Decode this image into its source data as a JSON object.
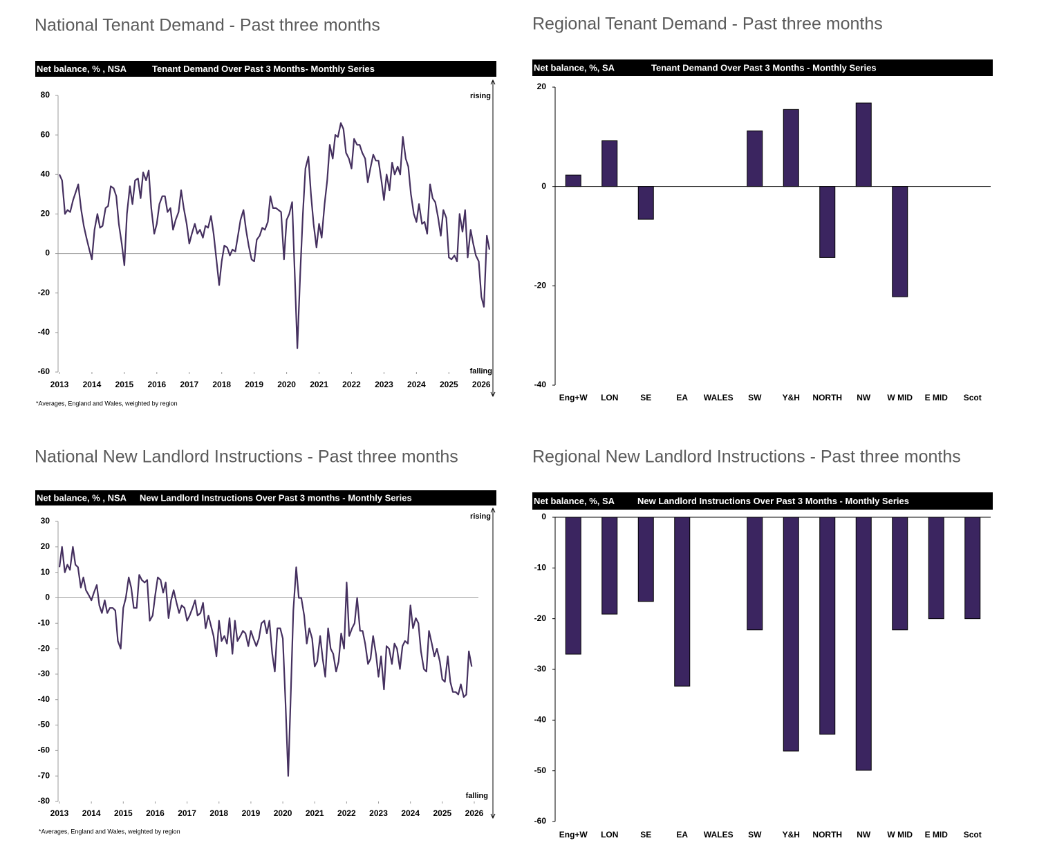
{
  "chart_data": [
    {
      "type": "line",
      "title": "National Tenant Demand - Past three months",
      "subtitle": "Tenant Demand Over Past 3 Months- Monthly Series",
      "ylabel": "Net balance, % , NSA",
      "annotations": [
        "rising",
        "falling"
      ],
      "footnote": "*Averages, England and Wales, weighted by region",
      "color": "#45305f",
      "x": [
        2013,
        2013.08,
        2013.17,
        2013.25,
        2013.33,
        2013.42,
        2013.5,
        2013.58,
        2013.67,
        2013.75,
        2013.83,
        2013.92,
        2014,
        2014.08,
        2014.17,
        2014.25,
        2014.33,
        2014.42,
        2014.5,
        2014.58,
        2014.67,
        2014.75,
        2014.83,
        2014.92,
        2015,
        2015.08,
        2015.17,
        2015.25,
        2015.33,
        2015.42,
        2015.5,
        2015.58,
        2015.67,
        2015.75,
        2015.83,
        2015.92,
        2016,
        2016.08,
        2016.17,
        2016.25,
        2016.33,
        2016.42,
        2016.5,
        2016.58,
        2016.67,
        2016.75,
        2016.83,
        2016.92,
        2017,
        2017.08,
        2017.17,
        2017.25,
        2017.33,
        2017.42,
        2017.5,
        2017.58,
        2017.67,
        2017.75,
        2017.83,
        2017.92,
        2018,
        2018.08,
        2018.17,
        2018.25,
        2018.33,
        2018.42,
        2018.5,
        2018.58,
        2018.67,
        2018.75,
        2018.83,
        2018.92,
        2019,
        2019.08,
        2019.17,
        2019.25,
        2019.33,
        2019.42,
        2019.5,
        2019.58,
        2019.67,
        2019.75,
        2019.83,
        2019.92,
        2020,
        2020.08,
        2020.17,
        2020.25,
        2020.33,
        2020.42,
        2020.5,
        2020.58,
        2020.67,
        2020.75,
        2020.83,
        2020.92,
        2021,
        2021.08,
        2021.17,
        2021.25,
        2021.33,
        2021.42,
        2021.5,
        2021.58,
        2021.67,
        2021.75,
        2021.83,
        2021.92,
        2022,
        2022.08,
        2022.17,
        2022.25,
        2022.33,
        2022.42,
        2022.5,
        2022.58,
        2022.67,
        2022.75,
        2022.83,
        2022.92,
        2023,
        2023.08,
        2023.17,
        2023.25,
        2023.33,
        2023.42,
        2023.5,
        2023.58,
        2023.67,
        2023.75,
        2023.83,
        2023.92,
        2024,
        2024.08,
        2024.17,
        2024.25,
        2024.33,
        2024.42,
        2024.5,
        2024.58,
        2024.67,
        2024.75,
        2024.83,
        2024.92,
        2025,
        2025.08,
        2025.17,
        2025.25,
        2025.33,
        2025.42,
        2025.5,
        2025.58,
        2025.67,
        2025.75,
        2025.83,
        2025.92,
        2026,
        2026.08,
        2026.17,
        2026.25
      ],
      "values": [
        40,
        37,
        20,
        22,
        21,
        27,
        31,
        35,
        22,
        14,
        8,
        2,
        -3,
        12,
        20,
        13,
        14,
        23,
        24,
        34,
        33,
        29,
        15,
        5,
        -6,
        20,
        34,
        25,
        37,
        38,
        28,
        41,
        37,
        42,
        23,
        10,
        15,
        25,
        29,
        29,
        21,
        23,
        12,
        17,
        21,
        32,
        23,
        15,
        5,
        10,
        15,
        10,
        12,
        8,
        14,
        13,
        19,
        10,
        -2,
        -16,
        -4,
        4,
        3,
        -1,
        2,
        1,
        9,
        17,
        22,
        12,
        4,
        -3,
        -4,
        7,
        9,
        13,
        12,
        16,
        29,
        23,
        23,
        22,
        21,
        -3,
        17,
        20,
        26,
        -10,
        -48,
        -10,
        20,
        43,
        49,
        30,
        15,
        3,
        15,
        8,
        25,
        37,
        55,
        48,
        60,
        59,
        66,
        63,
        51,
        48,
        43,
        58,
        55,
        55,
        51,
        48,
        36,
        43,
        50,
        47,
        47,
        37,
        27,
        40,
        32,
        46,
        40,
        44,
        40,
        59,
        48,
        44,
        30,
        20,
        16,
        25,
        15,
        16,
        10,
        35,
        28,
        26,
        18,
        9,
        22,
        18,
        -2,
        -3,
        -1,
        -4,
        20,
        11,
        22,
        -2,
        12,
        5,
        -1,
        -4,
        -22,
        -27,
        9,
        2
      ],
      "xlim": [
        2013,
        2026.25
      ],
      "xticks": [
        2013,
        2014,
        2015,
        2016,
        2017,
        2018,
        2019,
        2020,
        2021,
        2022,
        2023,
        2024,
        2025,
        2026
      ],
      "ylim": [
        -60,
        80
      ],
      "yticks": [
        -60,
        -40,
        -20,
        0,
        20,
        40,
        60,
        80
      ],
      "zero_line": true
    },
    {
      "type": "bar",
      "title": "Regional Tenant Demand - Past three months",
      "subtitle": "Tenant Demand Over Past 3 Months - Monthly Series",
      "ylabel": "Net balance, %, SA",
      "color": "#3b2560",
      "categories": [
        "Eng+W",
        "LON",
        "SE",
        "EA",
        "WALES",
        "SW",
        "Y&H",
        "NORTH",
        "NW",
        "W MID",
        "E MID",
        "Scot"
      ],
      "values": [
        2.3,
        9.2,
        -6.6,
        null,
        null,
        11.2,
        15.5,
        -14.3,
        16.8,
        -22.2,
        null,
        null
      ],
      "ylim": [
        -40,
        20
      ],
      "yticks": [
        -40,
        -20,
        0,
        20
      ],
      "zero_line": true
    },
    {
      "type": "line",
      "title": "National New Landlord Instructions - Past three months",
      "subtitle": "New Landlord Instructions Over Past 3 months - Monthly Series",
      "ylabel": "Net balance, % , NSA",
      "annotations": [
        "rising",
        "falling"
      ],
      "footnote": "*Averages, England and Wales, weighted by region",
      "color": "#45305f",
      "x": [
        2013,
        2013.08,
        2013.17,
        2013.25,
        2013.33,
        2013.42,
        2013.5,
        2013.58,
        2013.67,
        2013.75,
        2013.83,
        2013.92,
        2014,
        2014.08,
        2014.17,
        2014.25,
        2014.33,
        2014.42,
        2014.5,
        2014.58,
        2014.67,
        2014.75,
        2014.83,
        2014.92,
        2015,
        2015.08,
        2015.17,
        2015.25,
        2015.33,
        2015.42,
        2015.5,
        2015.58,
        2015.67,
        2015.75,
        2015.83,
        2015.92,
        2016,
        2016.08,
        2016.17,
        2016.25,
        2016.33,
        2016.42,
        2016.5,
        2016.58,
        2016.67,
        2016.75,
        2016.83,
        2016.92,
        2017,
        2017.08,
        2017.17,
        2017.25,
        2017.33,
        2017.42,
        2017.5,
        2017.58,
        2017.67,
        2017.75,
        2017.83,
        2017.92,
        2018,
        2018.08,
        2018.17,
        2018.25,
        2018.33,
        2018.42,
        2018.5,
        2018.58,
        2018.67,
        2018.75,
        2018.83,
        2018.92,
        2019,
        2019.08,
        2019.17,
        2019.25,
        2019.33,
        2019.42,
        2019.5,
        2019.58,
        2019.67,
        2019.75,
        2019.83,
        2019.92,
        2020,
        2020.08,
        2020.17,
        2020.25,
        2020.33,
        2020.42,
        2020.5,
        2020.58,
        2020.67,
        2020.75,
        2020.83,
        2020.92,
        2021,
        2021.08,
        2021.17,
        2021.25,
        2021.33,
        2021.42,
        2021.5,
        2021.58,
        2021.67,
        2021.75,
        2021.83,
        2021.92,
        2022,
        2022.08,
        2022.17,
        2022.25,
        2022.33,
        2022.42,
        2022.5,
        2022.58,
        2022.67,
        2022.75,
        2022.83,
        2022.92,
        2023,
        2023.08,
        2023.17,
        2023.25,
        2023.33,
        2023.42,
        2023.5,
        2023.58,
        2023.67,
        2023.75,
        2023.83,
        2023.92,
        2024,
        2024.08,
        2024.17,
        2024.25,
        2024.33,
        2024.42,
        2024.5,
        2024.58,
        2024.67,
        2024.75,
        2024.83,
        2024.92,
        2025,
        2025.08,
        2025.17,
        2025.25,
        2025.33,
        2025.42,
        2025.5,
        2025.58,
        2025.67,
        2025.75,
        2025.83,
        2025.92
      ],
      "values": [
        12,
        20,
        10,
        13,
        11,
        20,
        13,
        12,
        4,
        8,
        3,
        1,
        -1,
        2,
        5,
        -3,
        -6,
        -1,
        -6,
        -4,
        -4,
        -5,
        -17,
        -20,
        -4,
        0,
        8,
        4,
        -4,
        -4,
        9,
        7,
        6,
        7,
        -9,
        -7,
        1,
        8,
        7,
        2,
        6,
        -8,
        -1,
        3,
        -2,
        -6,
        -3,
        -4,
        -9,
        -7,
        -4,
        -1,
        -7,
        -6,
        -2,
        -12,
        -7,
        -11,
        -15,
        -23,
        -9,
        -17,
        -15,
        -18,
        -8,
        -22,
        -9,
        -17,
        -15,
        -13,
        -14,
        -19,
        -13,
        -16,
        -19,
        -16,
        -10,
        -9,
        -14,
        -9,
        -22,
        -29,
        -12,
        -12,
        -16,
        -40,
        -70,
        -38,
        -5,
        12,
        0,
        0,
        -7,
        -18,
        -12,
        -16,
        -27,
        -25,
        -15,
        -24,
        -31,
        -12,
        -20,
        -22,
        -29,
        -25,
        -14,
        -20,
        6,
        -15,
        -12,
        -10,
        0,
        -13,
        -13,
        -18,
        -26,
        -24,
        -15,
        -22,
        -31,
        -23,
        -36,
        -19,
        -20,
        -26,
        -18,
        -20,
        -28,
        -19,
        -17,
        -18,
        -3,
        -12,
        -8,
        -10,
        -21,
        -28,
        -29,
        -13,
        -18,
        -23,
        -20,
        -25,
        -32,
        -33,
        -23,
        -33,
        -37,
        -37,
        -38,
        -34,
        -39,
        -38,
        -21,
        -27
      ],
      "xlim": [
        2013,
        2026
      ],
      "xticks": [
        2013,
        2014,
        2015,
        2016,
        2017,
        2018,
        2019,
        2020,
        2021,
        2022,
        2023,
        2024,
        2025,
        2026
      ],
      "ylim": [
        -80,
        30
      ],
      "yticks": [
        -80,
        -70,
        -60,
        -50,
        -40,
        -30,
        -20,
        -10,
        0,
        10,
        20,
        30
      ],
      "zero_line": true
    },
    {
      "type": "bar",
      "title": "Regional New Landlord Instructions - Past three months",
      "subtitle": "New Landlord Instructions Over Past 3 Months - Monthly Series",
      "ylabel": "Net balance, %, SA",
      "color": "#3b2560",
      "categories": [
        "Eng+W",
        "LON",
        "SE",
        "EA",
        "WALES",
        "SW",
        "Y&H",
        "NORTH",
        "NW",
        "W MID",
        "E MID",
        "Scot"
      ],
      "values": [
        -27.0,
        -19.1,
        -16.6,
        -33.3,
        null,
        -22.2,
        -46.1,
        -42.8,
        -49.9,
        -22.2,
        -20.0,
        -20.0
      ],
      "ylim": [
        -60,
        0
      ],
      "yticks": [
        -60,
        -50,
        -40,
        -30,
        -20,
        -10,
        0
      ],
      "zero_line": true
    }
  ]
}
